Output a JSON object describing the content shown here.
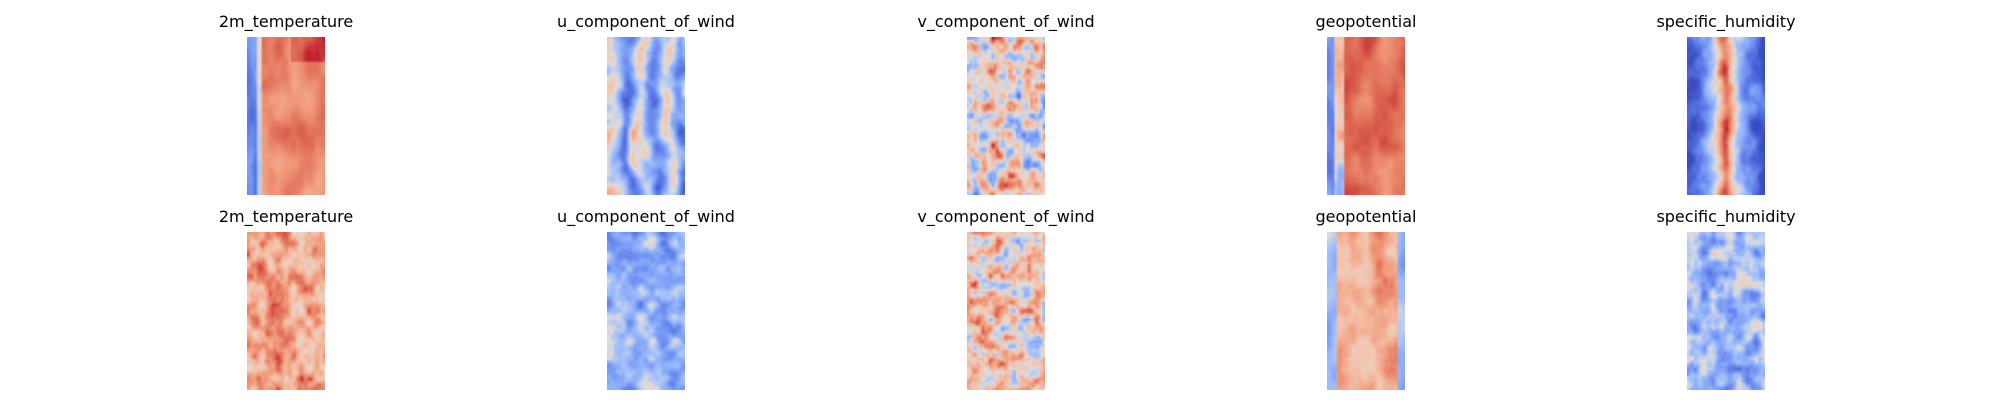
{
  "chart_data": {
    "type": "heatmap",
    "colormap": "coolwarm",
    "axes": "off",
    "columns": [
      "2m_temperature",
      "u_component_of_wind",
      "v_component_of_wind",
      "geopotential",
      "specific_humidity"
    ],
    "rows": 2,
    "panels": [
      {
        "title": "2m_temperature",
        "row": 0,
        "col": 0,
        "pattern": "temp_top",
        "seed": 11
      },
      {
        "title": "u_component_of_wind",
        "row": 0,
        "col": 1,
        "pattern": "u_top",
        "seed": 23
      },
      {
        "title": "v_component_of_wind",
        "row": 0,
        "col": 2,
        "pattern": "v_top",
        "seed": 37
      },
      {
        "title": "geopotential",
        "row": 0,
        "col": 3,
        "pattern": "geo_top",
        "seed": 41
      },
      {
        "title": "specific_humidity",
        "row": 0,
        "col": 4,
        "pattern": "hum_top",
        "seed": 53
      },
      {
        "title": "2m_temperature",
        "row": 1,
        "col": 0,
        "pattern": "temp_bot",
        "seed": 67
      },
      {
        "title": "u_component_of_wind",
        "row": 1,
        "col": 1,
        "pattern": "u_bot",
        "seed": 71
      },
      {
        "title": "v_component_of_wind",
        "row": 1,
        "col": 2,
        "pattern": "v_bot",
        "seed": 83
      },
      {
        "title": "geopotential",
        "row": 1,
        "col": 3,
        "pattern": "geo_bot",
        "seed": 97
      },
      {
        "title": "specific_humidity",
        "row": 1,
        "col": 4,
        "pattern": "hum_bot",
        "seed": 101
      }
    ]
  }
}
